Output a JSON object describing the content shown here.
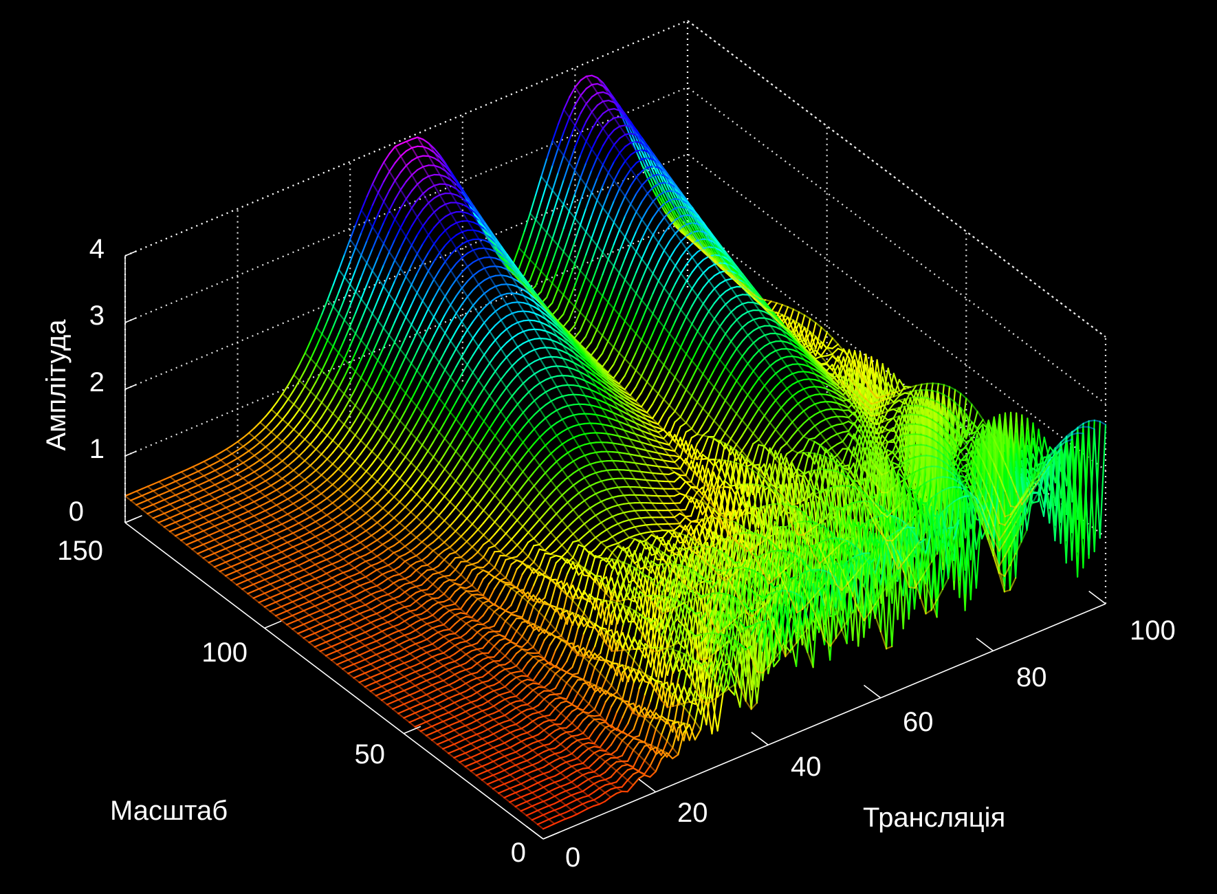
{
  "chart_data": {
    "type": "surface",
    "zlabel": "Амплітуда",
    "xlabel": "Трансляція",
    "ylabel": "Масштаб",
    "xlim": [
      0,
      100
    ],
    "ylim": [
      0,
      150
    ],
    "zlim": [
      0,
      4
    ],
    "x_ticks": [
      "0",
      "20",
      "40",
      "60",
      "80",
      "100"
    ],
    "y_ticks": [
      "0",
      "50",
      "100",
      "150"
    ],
    "z_ticks": [
      "0",
      "1",
      "2",
      "3",
      "4"
    ],
    "grid": true,
    "colormap": "hsv",
    "background": "#000000",
    "surface_samples": [
      {
        "x": 0,
        "y": 150,
        "z": 0.1
      },
      {
        "x": 50,
        "y": 150,
        "z": 3.9
      },
      {
        "x": 70,
        "y": 150,
        "z": 3.2
      },
      {
        "x": 80,
        "y": 150,
        "z": 3.8
      },
      {
        "x": 100,
        "y": 150,
        "z": 0.8
      },
      {
        "x": 50,
        "y": 75,
        "z": 0.5
      },
      {
        "x": 0,
        "y": 0,
        "z": 0.1
      },
      {
        "x": 100,
        "y": 0,
        "z": 0.1
      }
    ]
  }
}
